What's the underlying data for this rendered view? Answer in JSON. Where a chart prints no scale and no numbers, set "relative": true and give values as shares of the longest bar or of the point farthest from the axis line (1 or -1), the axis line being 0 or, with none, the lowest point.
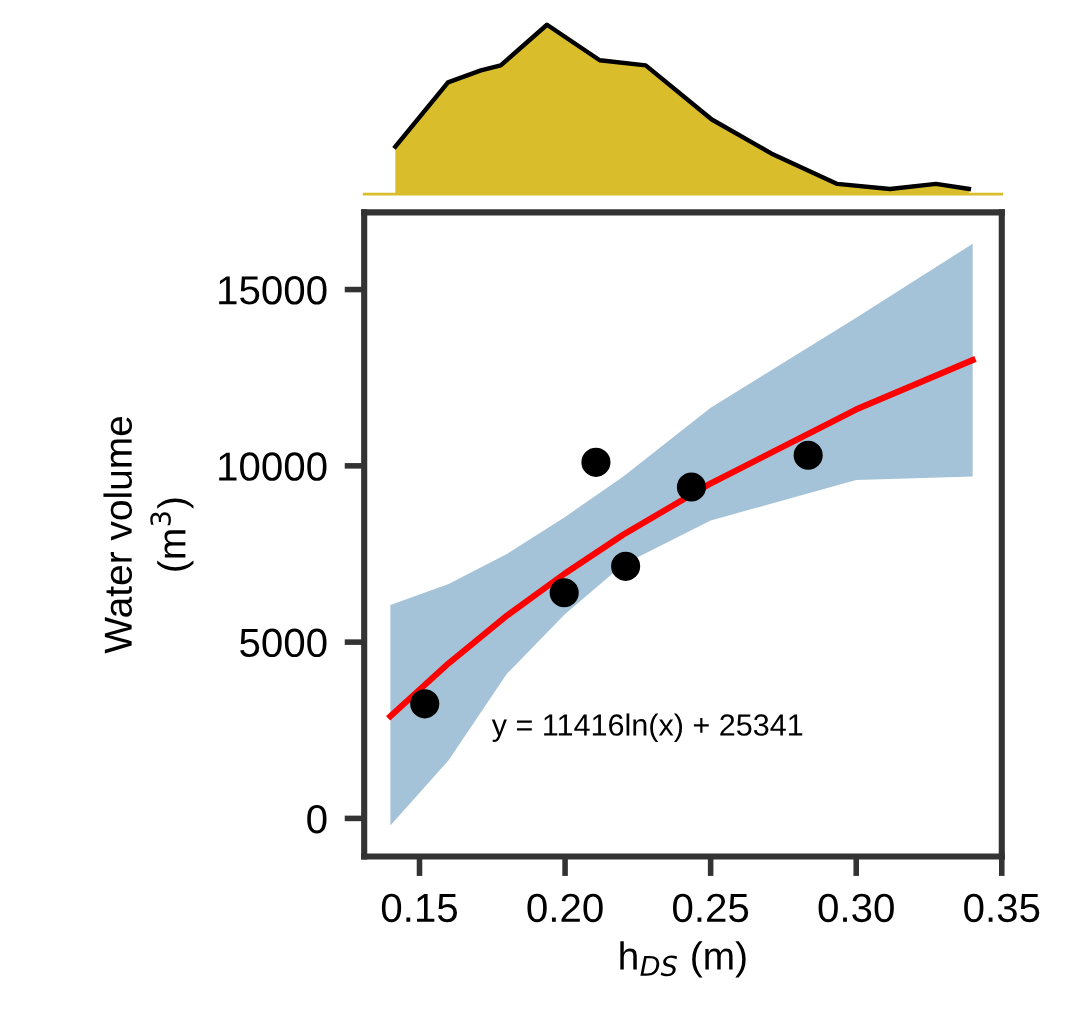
{
  "chart_data": [
    {
      "type": "area",
      "relative": true,
      "xlim": [
        0.131,
        0.35
      ],
      "series": [
        {
          "color": "#dabd2b",
          "x": [
            0.1417,
            0.1598,
            0.1711,
            0.1779,
            0.1938,
            0.2119,
            0.2277,
            0.2504,
            0.2708,
            0.2935,
            0.3116,
            0.3274,
            0.3387
          ],
          "values": [
            0.28,
            0.66,
            0.73,
            0.76,
            1.0,
            0.79,
            0.76,
            0.44,
            0.24,
            0.06,
            0.03,
            0.06,
            0.03
          ]
        }
      ]
    },
    {
      "type": "scatter",
      "xlabel": "h$_{DS}$ (m)",
      "ylabel": "Water volume\n(m$^{3}$)",
      "xlim": [
        0.131,
        0.35
      ],
      "xticks": [
        0.15,
        {
          "value": 0.2,
          "label": "0.20"
        },
        0.25,
        {
          "value": 0.3,
          "label": "0.30"
        },
        0.35
      ],
      "ylim": [
        -1080,
        17190
      ],
      "yticks": [
        0,
        5000,
        10000,
        15000
      ],
      "grid": false,
      "legend": false,
      "annotations": [
        "y = 11416ln(x) + 25341"
      ],
      "series": [
        {
          "type": "scatter",
          "marker": "circle",
          "color": "#000000",
          "x": [
            0.1518,
            0.1997,
            0.2106,
            0.2208,
            0.2434,
            0.2835
          ],
          "values": [
            3250,
            6400,
            10100,
            7150,
            9400,
            10300
          ]
        },
        {
          "type": "line",
          "color": "#ff0000",
          "line_style": "solid",
          "x": [
            0.14,
            0.16,
            0.18,
            0.2,
            0.22,
            0.25,
            0.3,
            0.34
          ],
          "values": [
            2900,
            4400,
            5750,
            6950,
            8050,
            9500,
            11600,
            13000
          ],
          "lower": [
            -200,
            1650,
            4100,
            5800,
            7200,
            8450,
            9600,
            9700
          ],
          "upper": [
            6050,
            6650,
            7500,
            8550,
            9700,
            11650,
            14200,
            16300
          ]
        }
      ]
    }
  ]
}
